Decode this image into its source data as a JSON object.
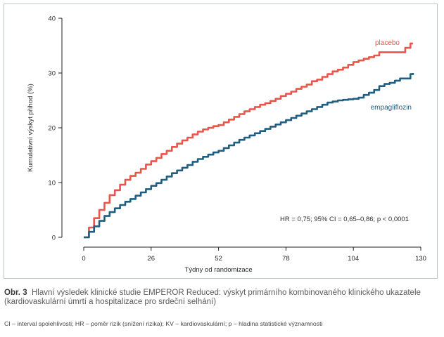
{
  "chart_data": {
    "type": "line",
    "xlabel": "Týdny od randomizace",
    "ylabel": "Kumulativní výskyt příhod (%)",
    "xlim": [
      0,
      130
    ],
    "ylim": [
      0,
      40
    ],
    "x_ticks": [
      0,
      26,
      52,
      78,
      104,
      130
    ],
    "y_ticks": [
      0,
      10,
      20,
      30,
      40
    ],
    "grid": false,
    "series": [
      {
        "name": "placebo",
        "color": "#e8554a",
        "x": [
          0,
          2,
          4,
          6,
          8,
          10,
          12,
          14,
          16,
          18,
          20,
          22,
          24,
          26,
          28,
          30,
          32,
          34,
          36,
          38,
          40,
          42,
          44,
          46,
          48,
          50,
          52,
          54,
          56,
          58,
          60,
          62,
          64,
          66,
          68,
          70,
          72,
          74,
          76,
          78,
          80,
          82,
          84,
          86,
          88,
          90,
          92,
          94,
          96,
          98,
          100,
          102,
          104,
          106,
          108,
          110,
          112,
          114,
          116,
          118,
          120,
          122,
          124,
          125,
          126,
          127
        ],
        "y": [
          0,
          1.8,
          3.5,
          5.0,
          6.3,
          7.7,
          8.6,
          9.6,
          10.5,
          11.2,
          11.8,
          12.5,
          13.3,
          13.9,
          14.5,
          15.2,
          15.8,
          16.5,
          17.1,
          17.7,
          18.2,
          18.8,
          19.3,
          19.7,
          20.0,
          20.3,
          20.5,
          21.0,
          21.5,
          22.0,
          22.5,
          23.0,
          23.4,
          23.8,
          24.2,
          24.5,
          24.9,
          25.3,
          25.8,
          26.2,
          26.6,
          27.1,
          27.5,
          27.9,
          28.5,
          28.8,
          29.3,
          29.8,
          30.3,
          30.6,
          31.0,
          31.5,
          32.0,
          32.3,
          32.6,
          32.9,
          33.2,
          33.8,
          33.8,
          33.8,
          33.8,
          33.8,
          34.6,
          34.6,
          35.4,
          35.4
        ]
      },
      {
        "name": "empagliflozin",
        "color": "#1f5e80",
        "x": [
          0,
          2,
          4,
          6,
          8,
          10,
          12,
          14,
          16,
          18,
          20,
          22,
          24,
          26,
          28,
          30,
          32,
          34,
          36,
          38,
          40,
          42,
          44,
          46,
          48,
          50,
          52,
          54,
          56,
          58,
          60,
          62,
          64,
          66,
          68,
          70,
          72,
          74,
          76,
          78,
          80,
          82,
          84,
          86,
          88,
          90,
          92,
          94,
          96,
          98,
          100,
          102,
          104,
          106,
          108,
          110,
          112,
          114,
          116,
          118,
          120,
          122,
          124,
          125,
          126,
          127
        ],
        "y": [
          0,
          1.0,
          2.0,
          3.0,
          3.9,
          4.6,
          5.3,
          5.9,
          6.5,
          7.0,
          7.6,
          8.2,
          8.8,
          9.4,
          9.9,
          10.5,
          11.1,
          11.7,
          12.2,
          12.7,
          13.2,
          13.8,
          14.3,
          14.7,
          15.1,
          15.5,
          15.8,
          16.3,
          16.8,
          17.3,
          17.8,
          18.2,
          18.6,
          19.0,
          19.4,
          19.8,
          20.2,
          20.6,
          21.0,
          21.4,
          21.8,
          22.2,
          22.6,
          23.0,
          23.4,
          23.8,
          24.2,
          24.6,
          24.8,
          25.0,
          25.1,
          25.2,
          25.3,
          25.5,
          26.0,
          26.4,
          26.9,
          27.6,
          28.0,
          28.2,
          28.6,
          29.0,
          29.0,
          29.0,
          29.8,
          30.0
        ]
      }
    ],
    "annotations": {
      "stats": "HR = 0,75; 95% CI = 0,65–0,86; p < 0,0001"
    }
  },
  "caption": {
    "label": "Obr. 3",
    "text": "Hlavní výsledek klinické studie EMPEROR Reduced: výskyt primárního kombinovaného klinického ukazatele (kardiovaskulární úmrtí a hospitalizace pro srdeční selhání)"
  },
  "footnote": "CI – interval spolehlivosti; HR – poměr rizik (snížení rizika); KV – kardiovaskulární; p – hladina statistické významnosti"
}
